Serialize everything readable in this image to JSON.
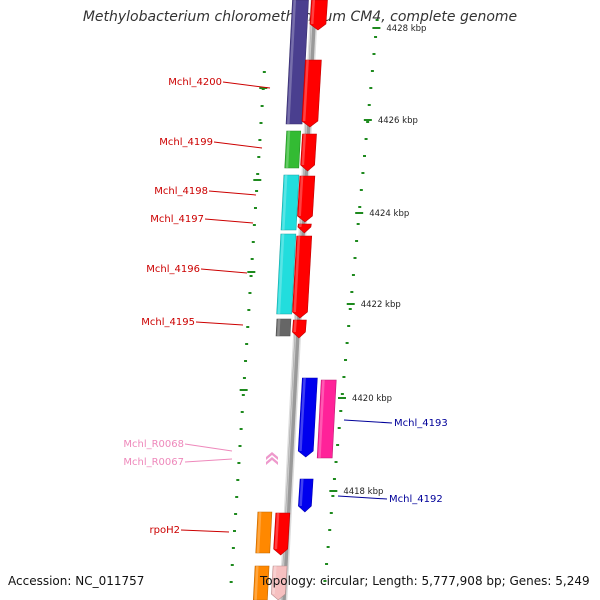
{
  "title": "Methylobacterium chloromethanicum CM4, complete genome",
  "accession": "Accession: NC_011757",
  "summary": "Topology: circular; Length: 5,777,908 bp; Genes: 5,249",
  "colors": {
    "backbone": "#9a9a9a",
    "tick": "#1e8a1e",
    "left_label": "#cc0000",
    "rna_label": "#ee88bb",
    "right_label": "#000099"
  },
  "kbp_labels": [
    {
      "id": "kbp-4428",
      "text": "4428 kbp"
    },
    {
      "id": "kbp-4426",
      "text": "4426 kbp"
    },
    {
      "id": "kbp-4424",
      "text": "4424 kbp"
    },
    {
      "id": "kbp-4422",
      "text": "4422 kbp"
    },
    {
      "id": "kbp-4420",
      "text": "4420 kbp"
    },
    {
      "id": "kbp-4418",
      "text": "4418 kbp"
    }
  ],
  "genes": [
    {
      "id": "Mchl_4200",
      "label": "Mchl_4200",
      "color": "#4a3f8f"
    },
    {
      "id": "Mchl_4199",
      "label": "Mchl_4199",
      "color": "#33bb33"
    },
    {
      "id": "Mchl_4198",
      "label": "Mchl_4198",
      "color": "#22dddd"
    },
    {
      "id": "Mchl_4197",
      "label": "Mchl_4197",
      "color": "#22dddd"
    },
    {
      "id": "Mchl_4196",
      "label": "Mchl_4196",
      "color": "#22dddd"
    },
    {
      "id": "Mchl_4195",
      "label": "Mchl_4195",
      "color": "#666666"
    },
    {
      "id": "Mchl_R0068",
      "label": "Mchl_R0068",
      "color": "#ee99cc"
    },
    {
      "id": "Mchl_R0067",
      "label": "Mchl_R0067",
      "color": "#ee99cc"
    },
    {
      "id": "rpoH2",
      "label": "rpoH2",
      "color": "#ff8800"
    },
    {
      "id": "Mchl_4193",
      "label": "Mchl_4193",
      "color": "#0000ee"
    },
    {
      "id": "Mchl_4192",
      "label": "Mchl_4192",
      "color": "#0000ee"
    }
  ]
}
